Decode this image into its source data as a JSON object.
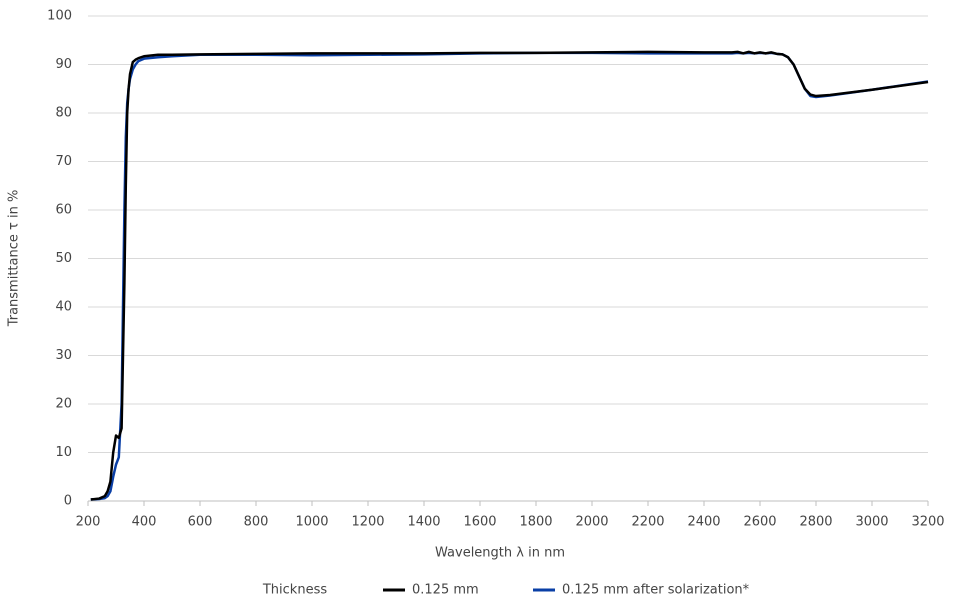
{
  "chart_data": {
    "type": "line",
    "x_label": "Wavelength λ in nm",
    "y_label": "Transmittance τ in %",
    "legend_title": "Thickness",
    "legend_position": "bottom",
    "grid": true,
    "xlim": [
      200,
      3200
    ],
    "xticks": [
      200,
      400,
      600,
      800,
      1000,
      1200,
      1400,
      1600,
      1800,
      2000,
      2200,
      2400,
      2600,
      2800,
      3000,
      3200
    ],
    "ylim": [
      0,
      100
    ],
    "yticks": [
      0,
      10,
      20,
      30,
      40,
      50,
      60,
      70,
      80,
      90,
      100
    ],
    "x": [
      210,
      240,
      260,
      270,
      280,
      290,
      300,
      310,
      320,
      325,
      330,
      335,
      340,
      345,
      350,
      360,
      370,
      380,
      400,
      450,
      500,
      600,
      800,
      1000,
      1200,
      1400,
      1600,
      1800,
      2000,
      2200,
      2400,
      2500,
      2520,
      2540,
      2560,
      2580,
      2600,
      2620,
      2640,
      2660,
      2680,
      2700,
      2720,
      2740,
      2760,
      2780,
      2800,
      2850,
      3000,
      3200
    ],
    "series": [
      {
        "name": "0.125 mm",
        "color": "#000000",
        "values": [
          0.3,
          0.5,
          1,
          2,
          4,
          10,
          13.5,
          13,
          15,
          30,
          45,
          65,
          80,
          85,
          88,
          90.5,
          91,
          91.3,
          91.7,
          92,
          92,
          92.1,
          92.2,
          92.3,
          92.3,
          92.3,
          92.4,
          92.4,
          92.5,
          92.6,
          92.5,
          92.5,
          92.6,
          92.3,
          92.6,
          92.3,
          92.5,
          92.3,
          92.5,
          92.2,
          92.1,
          91.5,
          90,
          87.5,
          85,
          83.8,
          83.5,
          83.7,
          84.8,
          86.4
        ]
      },
      {
        "name": "0.125 mm after solarization*",
        "color": "#0a3fa6",
        "values": [
          0.3,
          0.4,
          0.6,
          1,
          2,
          5,
          7.5,
          9,
          20,
          40,
          60,
          75,
          82,
          85,
          87,
          89,
          90,
          90.7,
          91.2,
          91.5,
          91.7,
          92,
          92,
          91.9,
          92,
          92.1,
          92.3,
          92.4,
          92.4,
          92.3,
          92.3,
          92.3,
          92.4,
          92.3,
          92.4,
          92.3,
          92.4,
          92.3,
          92.4,
          92.2,
          92.1,
          91.5,
          90,
          87.5,
          85,
          83.5,
          83.3,
          83.6,
          84.8,
          86.5
        ]
      }
    ]
  }
}
